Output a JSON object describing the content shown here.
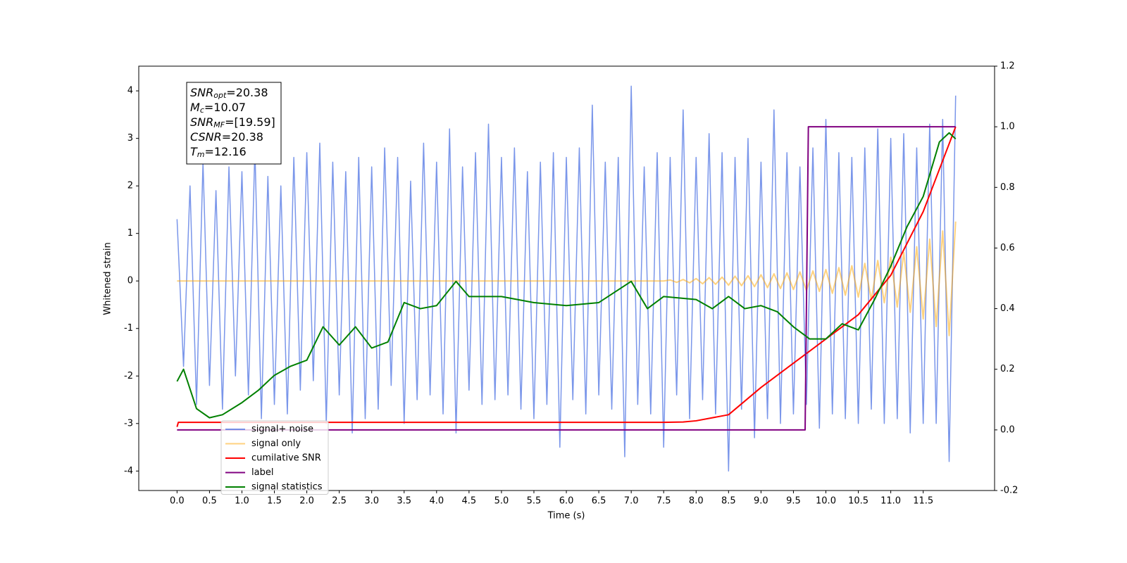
{
  "chart_data": {
    "type": "line",
    "xlabel": "Time (s)",
    "ylabel": "Whitened strain",
    "annotations": [
      {
        "name": "SNR",
        "sub": "opt",
        "text": "=20.38"
      },
      {
        "name": "M",
        "sub": "c",
        "text": "=10.07"
      },
      {
        "name": "SNR",
        "sub": "MF",
        "text": "=[19.59]"
      },
      {
        "name": "CSNR",
        "text": "=20.38"
      },
      {
        "name": "T",
        "sub": "m",
        "text": "=12.16"
      }
    ],
    "legend": "lower left",
    "x": [
      0,
      0.1,
      0.2,
      0.3,
      0.4,
      0.5,
      0.6,
      0.7,
      0.8,
      0.9,
      1,
      1.1,
      1.2,
      1.3,
      1.4,
      1.5,
      1.6,
      1.7,
      1.8,
      1.9,
      2,
      2.1,
      2.2,
      2.3,
      2.4,
      2.5,
      2.6,
      2.7,
      2.8,
      2.9,
      3,
      3.1,
      3.2,
      3.3,
      3.4,
      3.5,
      3.6,
      3.7,
      3.8,
      3.9,
      4,
      4.1,
      4.2,
      4.3,
      4.4,
      4.5,
      4.6,
      4.7,
      4.8,
      4.9,
      5,
      5.1,
      5.2,
      5.3,
      5.4,
      5.5,
      5.6,
      5.7,
      5.8,
      5.9,
      6,
      6.1,
      6.2,
      6.3,
      6.4,
      6.5,
      6.6,
      6.7,
      6.8,
      6.9,
      7,
      7.1,
      7.2,
      7.3,
      7.4,
      7.5,
      7.6,
      7.7,
      7.8,
      7.9,
      8,
      8.1,
      8.2,
      8.3,
      8.4,
      8.5,
      8.6,
      8.7,
      8.8,
      8.9,
      9,
      9.1,
      9.2,
      9.3,
      9.4,
      9.5,
      9.6,
      9.7,
      9.8,
      9.9,
      10,
      10.1,
      10.2,
      10.3,
      10.4,
      10.5,
      10.6,
      10.7,
      10.8,
      10.9,
      11,
      11.1,
      11.2,
      11.3,
      11.4,
      11.5,
      11.6,
      11.7,
      11.8,
      11.9,
      12
    ],
    "series": [
      {
        "name": "signal+ noise",
        "color": "#4169e1",
        "values": [
          1.3,
          -1.8,
          2.0,
          -2.6,
          2.5,
          -2.2,
          1.9,
          -2.7,
          2.4,
          -2.0,
          2.3,
          -2.4,
          2.8,
          -2.9,
          2.2,
          -2.6,
          2.0,
          -2.8,
          2.6,
          -2.3,
          2.7,
          -2.1,
          2.9,
          -3.0,
          2.5,
          -2.4,
          2.3,
          -3.2,
          2.6,
          -2.9,
          2.4,
          -2.7,
          2.8,
          -2.2,
          2.6,
          -3.0,
          2.1,
          -2.5,
          2.9,
          -2.4,
          2.5,
          -2.8,
          3.2,
          -3.2,
          2.4,
          -2.3,
          2.7,
          -2.6,
          3.3,
          -2.5,
          2.6,
          -2.4,
          2.8,
          -2.7,
          2.3,
          -2.9,
          2.5,
          -2.6,
          2.7,
          -3.5,
          2.6,
          -2.5,
          2.8,
          -2.8,
          3.7,
          -2.4,
          2.5,
          -2.7,
          2.6,
          -3.7,
          4.1,
          -2.6,
          2.4,
          -2.8,
          2.7,
          -3.5,
          2.6,
          -2.4,
          3.6,
          -2.9,
          2.6,
          -2.5,
          3.1,
          -2.8,
          2.7,
          -4.0,
          2.6,
          -2.7,
          3.0,
          -3.3,
          2.5,
          -2.9,
          3.6,
          -3.0,
          2.7,
          -2.8,
          2.4,
          -2.6,
          2.8,
          -3.1,
          3.4,
          -2.8,
          2.7,
          -2.9,
          2.6,
          -3.0,
          2.8,
          -2.7,
          3.2,
          -3.0,
          3.0,
          -2.9,
          3.1,
          -3.2,
          2.8,
          -3.0,
          3.3,
          -3.0,
          3.4,
          -3.8,
          3.9
        ]
      },
      {
        "name": "signal only",
        "color": "#ffa500",
        "values": [
          0,
          0,
          0,
          0,
          0,
          0,
          0,
          0,
          0,
          0,
          0,
          0,
          0,
          0,
          0,
          0,
          0,
          0,
          0,
          0,
          0,
          0,
          0,
          0,
          0,
          0,
          0,
          0,
          0,
          0,
          0,
          0,
          0,
          0,
          0,
          0,
          0,
          0,
          0,
          0,
          0,
          0,
          0,
          0,
          0,
          0,
          0,
          0,
          0,
          0,
          0,
          0,
          0,
          0,
          0,
          0,
          0,
          0,
          0,
          0,
          0,
          0,
          0,
          0,
          0,
          0,
          0,
          0,
          0,
          0,
          0,
          0,
          0,
          0,
          0,
          0,
          0.02,
          -0.03,
          0.03,
          -0.04,
          0.05,
          -0.06,
          0.07,
          -0.07,
          0.08,
          -0.09,
          0.1,
          -0.1,
          0.11,
          -0.12,
          0.13,
          -0.14,
          0.15,
          -0.16,
          0.17,
          -0.18,
          0.19,
          -0.2,
          0.21,
          -0.22,
          0.24,
          -0.26,
          0.28,
          -0.3,
          0.32,
          -0.34,
          0.37,
          -0.4,
          0.43,
          -0.46,
          0.5,
          -0.55,
          0.6,
          -0.66,
          0.72,
          -0.8,
          0.88,
          -0.96,
          1.05,
          -1.15,
          1.25
        ]
      },
      {
        "name": "cumilative SNR",
        "color": "#ff0000",
        "axis": "y2",
        "x": [
          0,
          0.02,
          7.5,
          7.8,
          8.0,
          8.5,
          9.0,
          9.5,
          10.0,
          10.5,
          11.0,
          11.5,
          12.0
        ],
        "values": [
          0.01,
          0.025,
          0.025,
          0.026,
          0.03,
          0.05,
          0.14,
          0.22,
          0.3,
          0.38,
          0.51,
          0.72,
          1.0
        ]
      },
      {
        "name": "label",
        "color": "#800080",
        "axis": "y2",
        "x": [
          0,
          9.68,
          9.73,
          12.0
        ],
        "values": [
          0,
          0,
          1,
          1
        ]
      },
      {
        "name": "signal statistics",
        "color": "#008000",
        "axis": "y2",
        "x": [
          0,
          0.1,
          0.3,
          0.5,
          0.7,
          1.0,
          1.25,
          1.5,
          1.75,
          2.0,
          2.25,
          2.5,
          2.75,
          3.0,
          3.25,
          3.5,
          3.75,
          4.0,
          4.3,
          4.5,
          5.0,
          5.5,
          6.0,
          6.5,
          7.0,
          7.25,
          7.5,
          8.0,
          8.25,
          8.5,
          8.75,
          9.0,
          9.25,
          9.5,
          9.75,
          10.0,
          10.25,
          10.5,
          10.75,
          11.0,
          11.25,
          11.5,
          11.75,
          11.9,
          12.0
        ],
        "values": [
          0.16,
          0.2,
          0.07,
          0.04,
          0.05,
          0.09,
          0.13,
          0.18,
          0.21,
          0.23,
          0.34,
          0.28,
          0.34,
          0.27,
          0.29,
          0.42,
          0.4,
          0.41,
          0.49,
          0.44,
          0.44,
          0.42,
          0.41,
          0.42,
          0.49,
          0.4,
          0.44,
          0.43,
          0.4,
          0.44,
          0.4,
          0.41,
          0.39,
          0.34,
          0.3,
          0.3,
          0.35,
          0.33,
          0.43,
          0.54,
          0.67,
          0.77,
          0.95,
          0.98,
          0.96
        ]
      }
    ],
    "xlim": [
      -0.59,
      12.6
    ],
    "xticks": [
      {
        "value": 0,
        "label": "0.0"
      },
      0.5,
      {
        "value": 1,
        "label": "1.0"
      },
      1.5,
      {
        "value": 2,
        "label": "2.0"
      },
      2.5,
      {
        "value": 3,
        "label": "3.0"
      },
      3.5,
      {
        "value": 4,
        "label": "4.0"
      },
      4.5,
      {
        "value": 5,
        "label": "5.0"
      },
      5.5,
      {
        "value": 6,
        "label": "6.0"
      },
      6.5,
      {
        "value": 7,
        "label": "7.0"
      },
      7.5,
      {
        "value": 8,
        "label": "8.0"
      },
      8.5,
      {
        "value": 9,
        "label": "9.0"
      },
      9.5,
      {
        "value": 10,
        "label": "10.0"
      },
      10.5,
      {
        "value": 11,
        "label": "11.0"
      },
      11.5
    ],
    "ylim": [
      -4.41,
      4.52
    ],
    "yticks": [
      -4,
      -3,
      -2,
      -1,
      0,
      1,
      2,
      3,
      4
    ],
    "y2lim": [
      -0.2,
      1.2
    ],
    "y2ticks": [
      -0.2,
      {
        "value": 0,
        "label": "0.0"
      },
      0.2,
      0.4,
      0.6,
      0.8,
      {
        "value": 1,
        "label": "1.0"
      },
      1.2
    ]
  }
}
